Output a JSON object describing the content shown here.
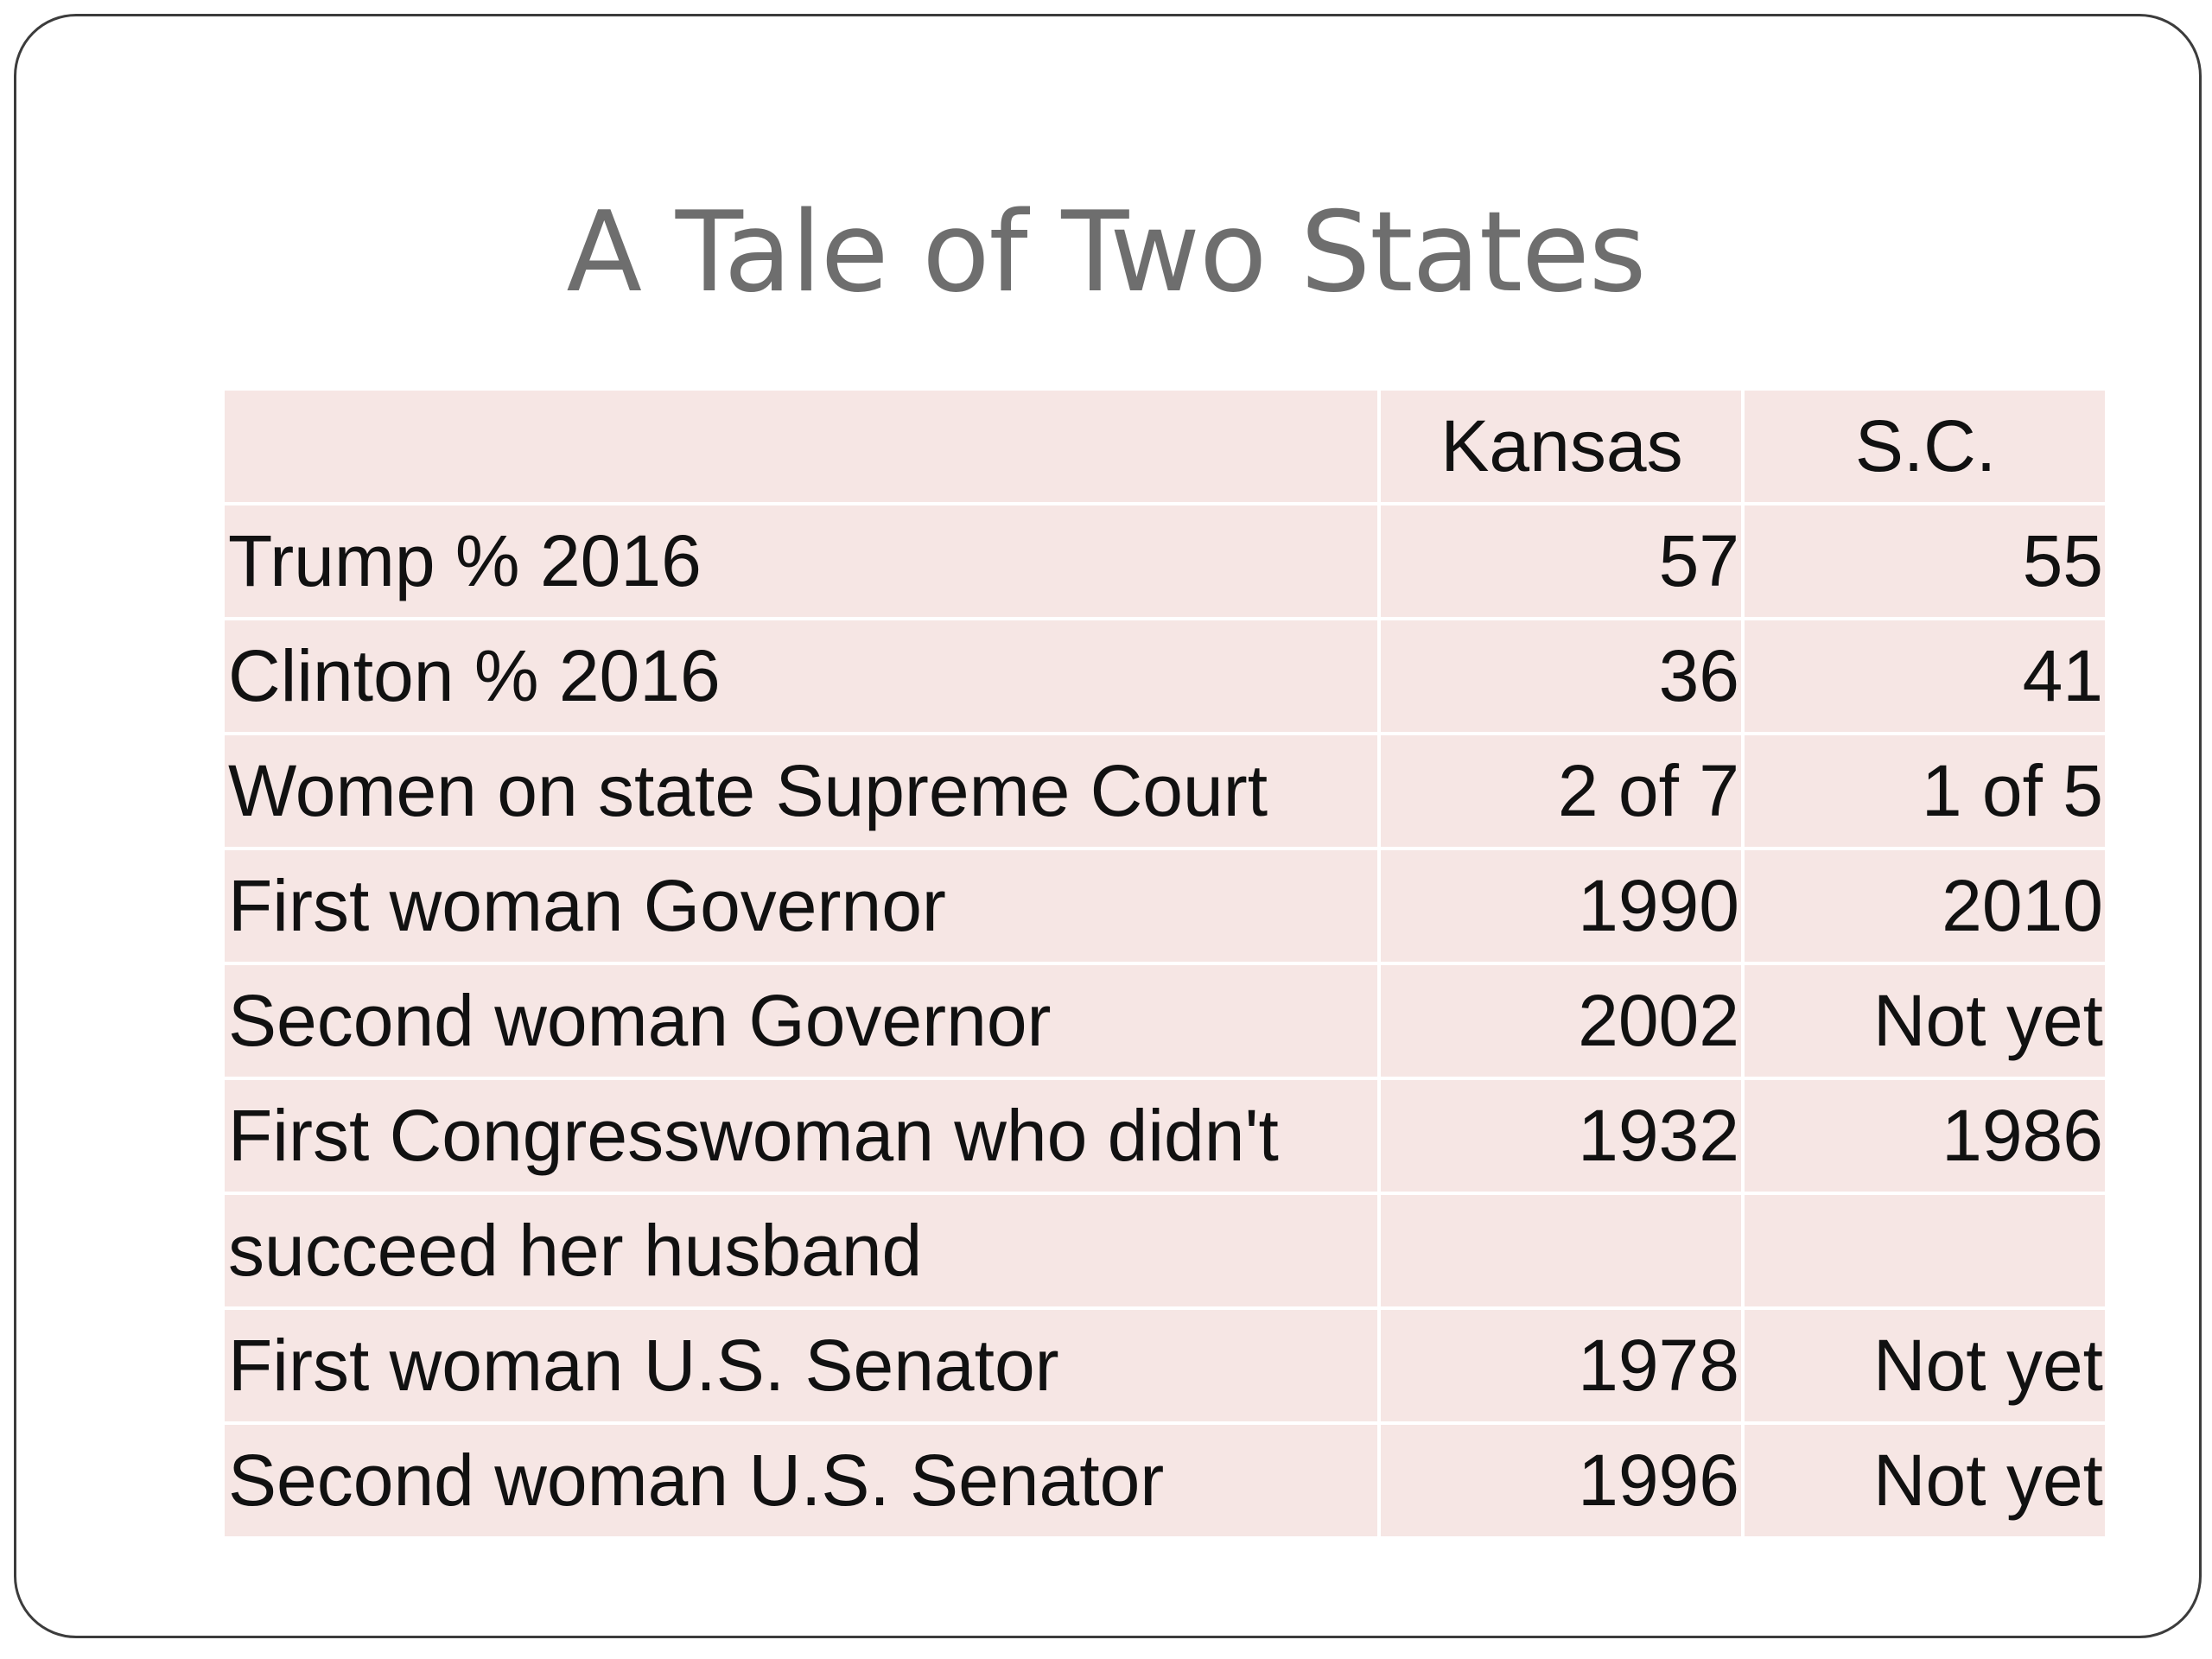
{
  "title": "A Tale of Two States",
  "table": {
    "header": [
      "",
      "Kansas",
      "S.C."
    ],
    "rows": [
      {
        "label": "Trump % 2016",
        "kansas": "57",
        "sc": "55"
      },
      {
        "label": "Clinton % 2016",
        "kansas": "36",
        "sc": "41"
      },
      {
        "label": "Women on state Supreme Court",
        "kansas": "2 of 7",
        "sc": "1 of 5"
      },
      {
        "label": "First woman Governor",
        "kansas": "1990",
        "sc": "2010"
      },
      {
        "label": "Second woman Governor",
        "kansas": "2002",
        "sc": "Not yet"
      },
      {
        "label": "First Congresswoman who didn't",
        "label_cont": "succeed her husband",
        "kansas": "1932",
        "sc": "1986"
      },
      {
        "label": "First woman U.S. Senator",
        "kansas": "1978",
        "sc": "Not yet"
      },
      {
        "label": "Second woman U.S. Senator",
        "kansas": "1996",
        "sc": "Not yet"
      }
    ]
  },
  "colors": {
    "cell_background": "#f6e6e4",
    "title_text": "#6e6e6e",
    "body_text": "#111111",
    "frame_border": "#3c3c3c"
  }
}
